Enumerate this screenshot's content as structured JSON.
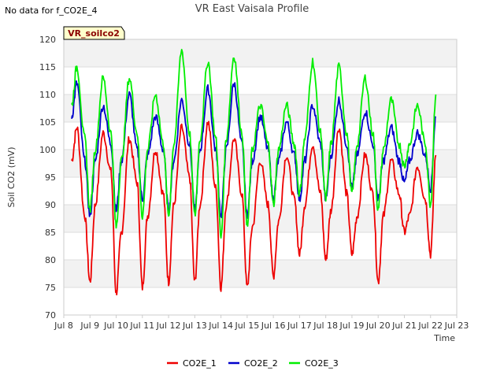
{
  "note": "No data for f_CO2E_4",
  "colors": {
    "CO2E_1": "#ee0000",
    "CO2E_2": "#0000cc",
    "CO2E_3": "#00ee00",
    "band": "#f2f2f2",
    "tag_fill": "#ffffcc"
  },
  "chart_data": {
    "type": "line",
    "title": "VR East Vaisala Profile",
    "xlabel": "Time",
    "ylabel": "Soil CO2 (mV)",
    "tag": "VR_soilco2",
    "ylim": [
      70,
      120
    ],
    "xlim": [
      8,
      23
    ],
    "yticks": [
      70,
      75,
      80,
      85,
      90,
      95,
      100,
      105,
      110,
      115,
      120
    ],
    "xticks": [
      {
        "v": 8,
        "label": "Jul 8"
      },
      {
        "v": 9,
        "label": "Jul 9"
      },
      {
        "v": 10,
        "label": "Jul 10"
      },
      {
        "v": 11,
        "label": "Jul 11"
      },
      {
        "v": 12,
        "label": "Jul 12"
      },
      {
        "v": 13,
        "label": "Jul 13"
      },
      {
        "v": 14,
        "label": "Jul 14"
      },
      {
        "v": 15,
        "label": "Jul 15"
      },
      {
        "v": 16,
        "label": "Jul 16"
      },
      {
        "v": 17,
        "label": "Jul 17"
      },
      {
        "v": 18,
        "label": "Jul 18"
      },
      {
        "v": 19,
        "label": "Jul 19"
      },
      {
        "v": 20,
        "label": "Jul 20"
      },
      {
        "v": 21,
        "label": "Jul 21"
      },
      {
        "v": 22,
        "label": "Jul 22"
      },
      {
        "v": 23,
        "label": "Jul 23"
      }
    ],
    "grid": true,
    "legend_position": "bottom-center",
    "series": [
      {
        "name": "CO2E_1",
        "color": "#ee0000",
        "points": [
          [
            8.3,
            98
          ],
          [
            8.5,
            104
          ],
          [
            8.8,
            88
          ],
          [
            9.0,
            76
          ],
          [
            9.2,
            90
          ],
          [
            9.5,
            103
          ],
          [
            9.8,
            96
          ],
          [
            10.0,
            74
          ],
          [
            10.2,
            85
          ],
          [
            10.5,
            102
          ],
          [
            10.8,
            94
          ],
          [
            11.0,
            75
          ],
          [
            11.2,
            88
          ],
          [
            11.5,
            100
          ],
          [
            11.8,
            92
          ],
          [
            12.0,
            76
          ],
          [
            12.2,
            90
          ],
          [
            12.5,
            104
          ],
          [
            12.8,
            95
          ],
          [
            13.0,
            76
          ],
          [
            13.2,
            90
          ],
          [
            13.5,
            105
          ],
          [
            13.8,
            93
          ],
          [
            14.0,
            75
          ],
          [
            14.2,
            90
          ],
          [
            14.5,
            102
          ],
          [
            14.8,
            92
          ],
          [
            15.0,
            75
          ],
          [
            15.2,
            86
          ],
          [
            15.5,
            98
          ],
          [
            15.8,
            90
          ],
          [
            16.0,
            77
          ],
          [
            16.2,
            87
          ],
          [
            16.5,
            99
          ],
          [
            16.8,
            91
          ],
          [
            17.0,
            81
          ],
          [
            17.2,
            90
          ],
          [
            17.5,
            101
          ],
          [
            17.8,
            92
          ],
          [
            18.0,
            80
          ],
          [
            18.2,
            89
          ],
          [
            18.5,
            104
          ],
          [
            18.8,
            92
          ],
          [
            19.0,
            81
          ],
          [
            19.2,
            88
          ],
          [
            19.5,
            99
          ],
          [
            19.8,
            92
          ],
          [
            20.0,
            76
          ],
          [
            20.2,
            88
          ],
          [
            20.5,
            98
          ],
          [
            20.8,
            92
          ],
          [
            21.0,
            85
          ],
          [
            21.2,
            88
          ],
          [
            21.5,
            97
          ],
          [
            21.8,
            91
          ],
          [
            22.0,
            81
          ],
          [
            22.2,
            99
          ]
        ]
      },
      {
        "name": "CO2E_2",
        "color": "#0000cc",
        "points": [
          [
            8.3,
            106
          ],
          [
            8.5,
            112
          ],
          [
            8.8,
            98
          ],
          [
            9.0,
            88
          ],
          [
            9.2,
            98
          ],
          [
            9.5,
            108
          ],
          [
            9.8,
            101
          ],
          [
            10.0,
            89
          ],
          [
            10.2,
            98
          ],
          [
            10.5,
            110
          ],
          [
            10.8,
            100
          ],
          [
            11.0,
            91
          ],
          [
            11.2,
            99
          ],
          [
            11.5,
            106
          ],
          [
            11.8,
            100
          ],
          [
            12.0,
            89
          ],
          [
            12.2,
            98
          ],
          [
            12.5,
            109
          ],
          [
            12.8,
            101
          ],
          [
            13.0,
            89
          ],
          [
            13.2,
            100
          ],
          [
            13.5,
            111
          ],
          [
            13.8,
            100
          ],
          [
            14.0,
            88
          ],
          [
            14.2,
            100
          ],
          [
            14.5,
            112
          ],
          [
            14.8,
            101
          ],
          [
            15.0,
            88
          ],
          [
            15.2,
            98
          ],
          [
            15.5,
            106
          ],
          [
            15.8,
            100
          ],
          [
            16.0,
            91
          ],
          [
            16.2,
            98
          ],
          [
            16.5,
            105
          ],
          [
            16.8,
            99
          ],
          [
            17.0,
            91
          ],
          [
            17.2,
            98
          ],
          [
            17.5,
            108
          ],
          [
            17.8,
            101
          ],
          [
            18.0,
            91
          ],
          [
            18.2,
            99
          ],
          [
            18.5,
            109
          ],
          [
            18.8,
            101
          ],
          [
            19.0,
            93
          ],
          [
            19.2,
            99
          ],
          [
            19.5,
            107
          ],
          [
            19.8,
            101
          ],
          [
            20.0,
            91
          ],
          [
            20.2,
            98
          ],
          [
            20.5,
            104
          ],
          [
            20.8,
            98
          ],
          [
            21.0,
            94
          ],
          [
            21.2,
            98
          ],
          [
            21.5,
            103
          ],
          [
            21.8,
            99
          ],
          [
            22.0,
            93
          ],
          [
            22.2,
            106
          ]
        ]
      },
      {
        "name": "CO2E_3",
        "color": "#00ee00",
        "points": [
          [
            8.3,
            108
          ],
          [
            8.5,
            115
          ],
          [
            8.8,
            102
          ],
          [
            9.0,
            89
          ],
          [
            9.2,
            100
          ],
          [
            9.5,
            113
          ],
          [
            9.8,
            103
          ],
          [
            10.0,
            86
          ],
          [
            10.2,
            98
          ],
          [
            10.5,
            113
          ],
          [
            10.8,
            103
          ],
          [
            11.0,
            88
          ],
          [
            11.2,
            100
          ],
          [
            11.5,
            110
          ],
          [
            11.8,
            101
          ],
          [
            12.0,
            88
          ],
          [
            12.2,
            101
          ],
          [
            12.5,
            118
          ],
          [
            12.8,
            103
          ],
          [
            13.0,
            88
          ],
          [
            13.2,
            102
          ],
          [
            13.5,
            116
          ],
          [
            13.8,
            102
          ],
          [
            14.0,
            84
          ],
          [
            14.2,
            102
          ],
          [
            14.5,
            117
          ],
          [
            14.8,
            103
          ],
          [
            15.0,
            86
          ],
          [
            15.2,
            100
          ],
          [
            15.5,
            108
          ],
          [
            15.8,
            101
          ],
          [
            16.0,
            90
          ],
          [
            16.2,
            100
          ],
          [
            16.5,
            108
          ],
          [
            16.8,
            101
          ],
          [
            17.0,
            92
          ],
          [
            17.2,
            102
          ],
          [
            17.5,
            116
          ],
          [
            17.8,
            103
          ],
          [
            18.0,
            91
          ],
          [
            18.2,
            101
          ],
          [
            18.5,
            115
          ],
          [
            18.8,
            103
          ],
          [
            19.0,
            92
          ],
          [
            19.2,
            101
          ],
          [
            19.5,
            113
          ],
          [
            19.8,
            103
          ],
          [
            20.0,
            89
          ],
          [
            20.2,
            100
          ],
          [
            20.5,
            109
          ],
          [
            20.8,
            101
          ],
          [
            21.0,
            97
          ],
          [
            21.2,
            101
          ],
          [
            21.5,
            108
          ],
          [
            21.8,
            101
          ],
          [
            22.0,
            90
          ],
          [
            22.2,
            110
          ]
        ]
      }
    ]
  }
}
